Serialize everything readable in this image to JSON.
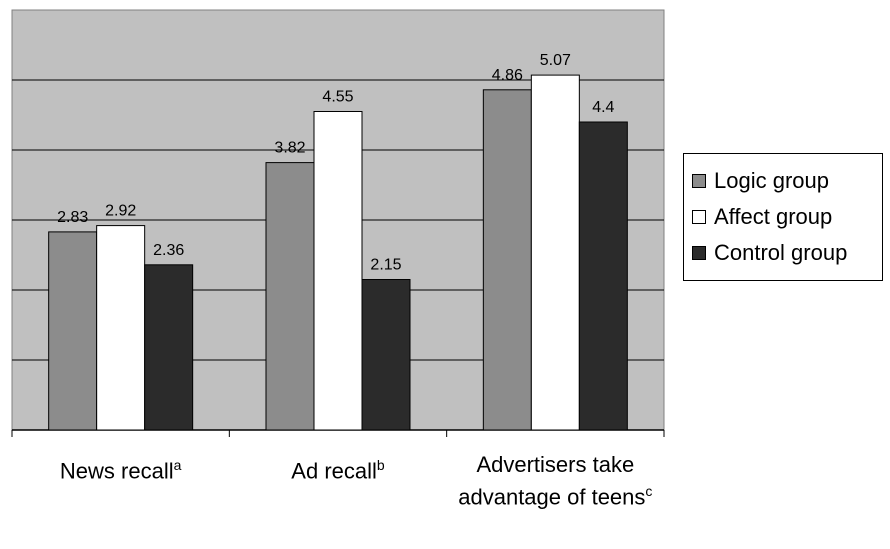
{
  "chart_data": {
    "type": "bar",
    "categories": [
      {
        "text": "News  recall",
        "sup": "a"
      },
      {
        "text": "Ad  recall",
        "sup": "b"
      },
      {
        "text": "Advertisers  take advantage of teens",
        "sup": "c"
      }
    ],
    "series": [
      {
        "name": "Logic  group",
        "values": [
          2.83,
          3.82,
          4.86
        ],
        "color": "#8c8c8c"
      },
      {
        "name": "Affect  group",
        "values": [
          2.92,
          4.55,
          5.07
        ],
        "color": "#ffffff"
      },
      {
        "name": "Control  group",
        "values": [
          2.36,
          2.15,
          4.4
        ],
        "color": "#2b2b2b"
      }
    ],
    "ylim": [
      0,
      6
    ],
    "ytick_step": 1,
    "grid": true,
    "plot_background": "#c0c0c0",
    "legend_position": "right"
  }
}
